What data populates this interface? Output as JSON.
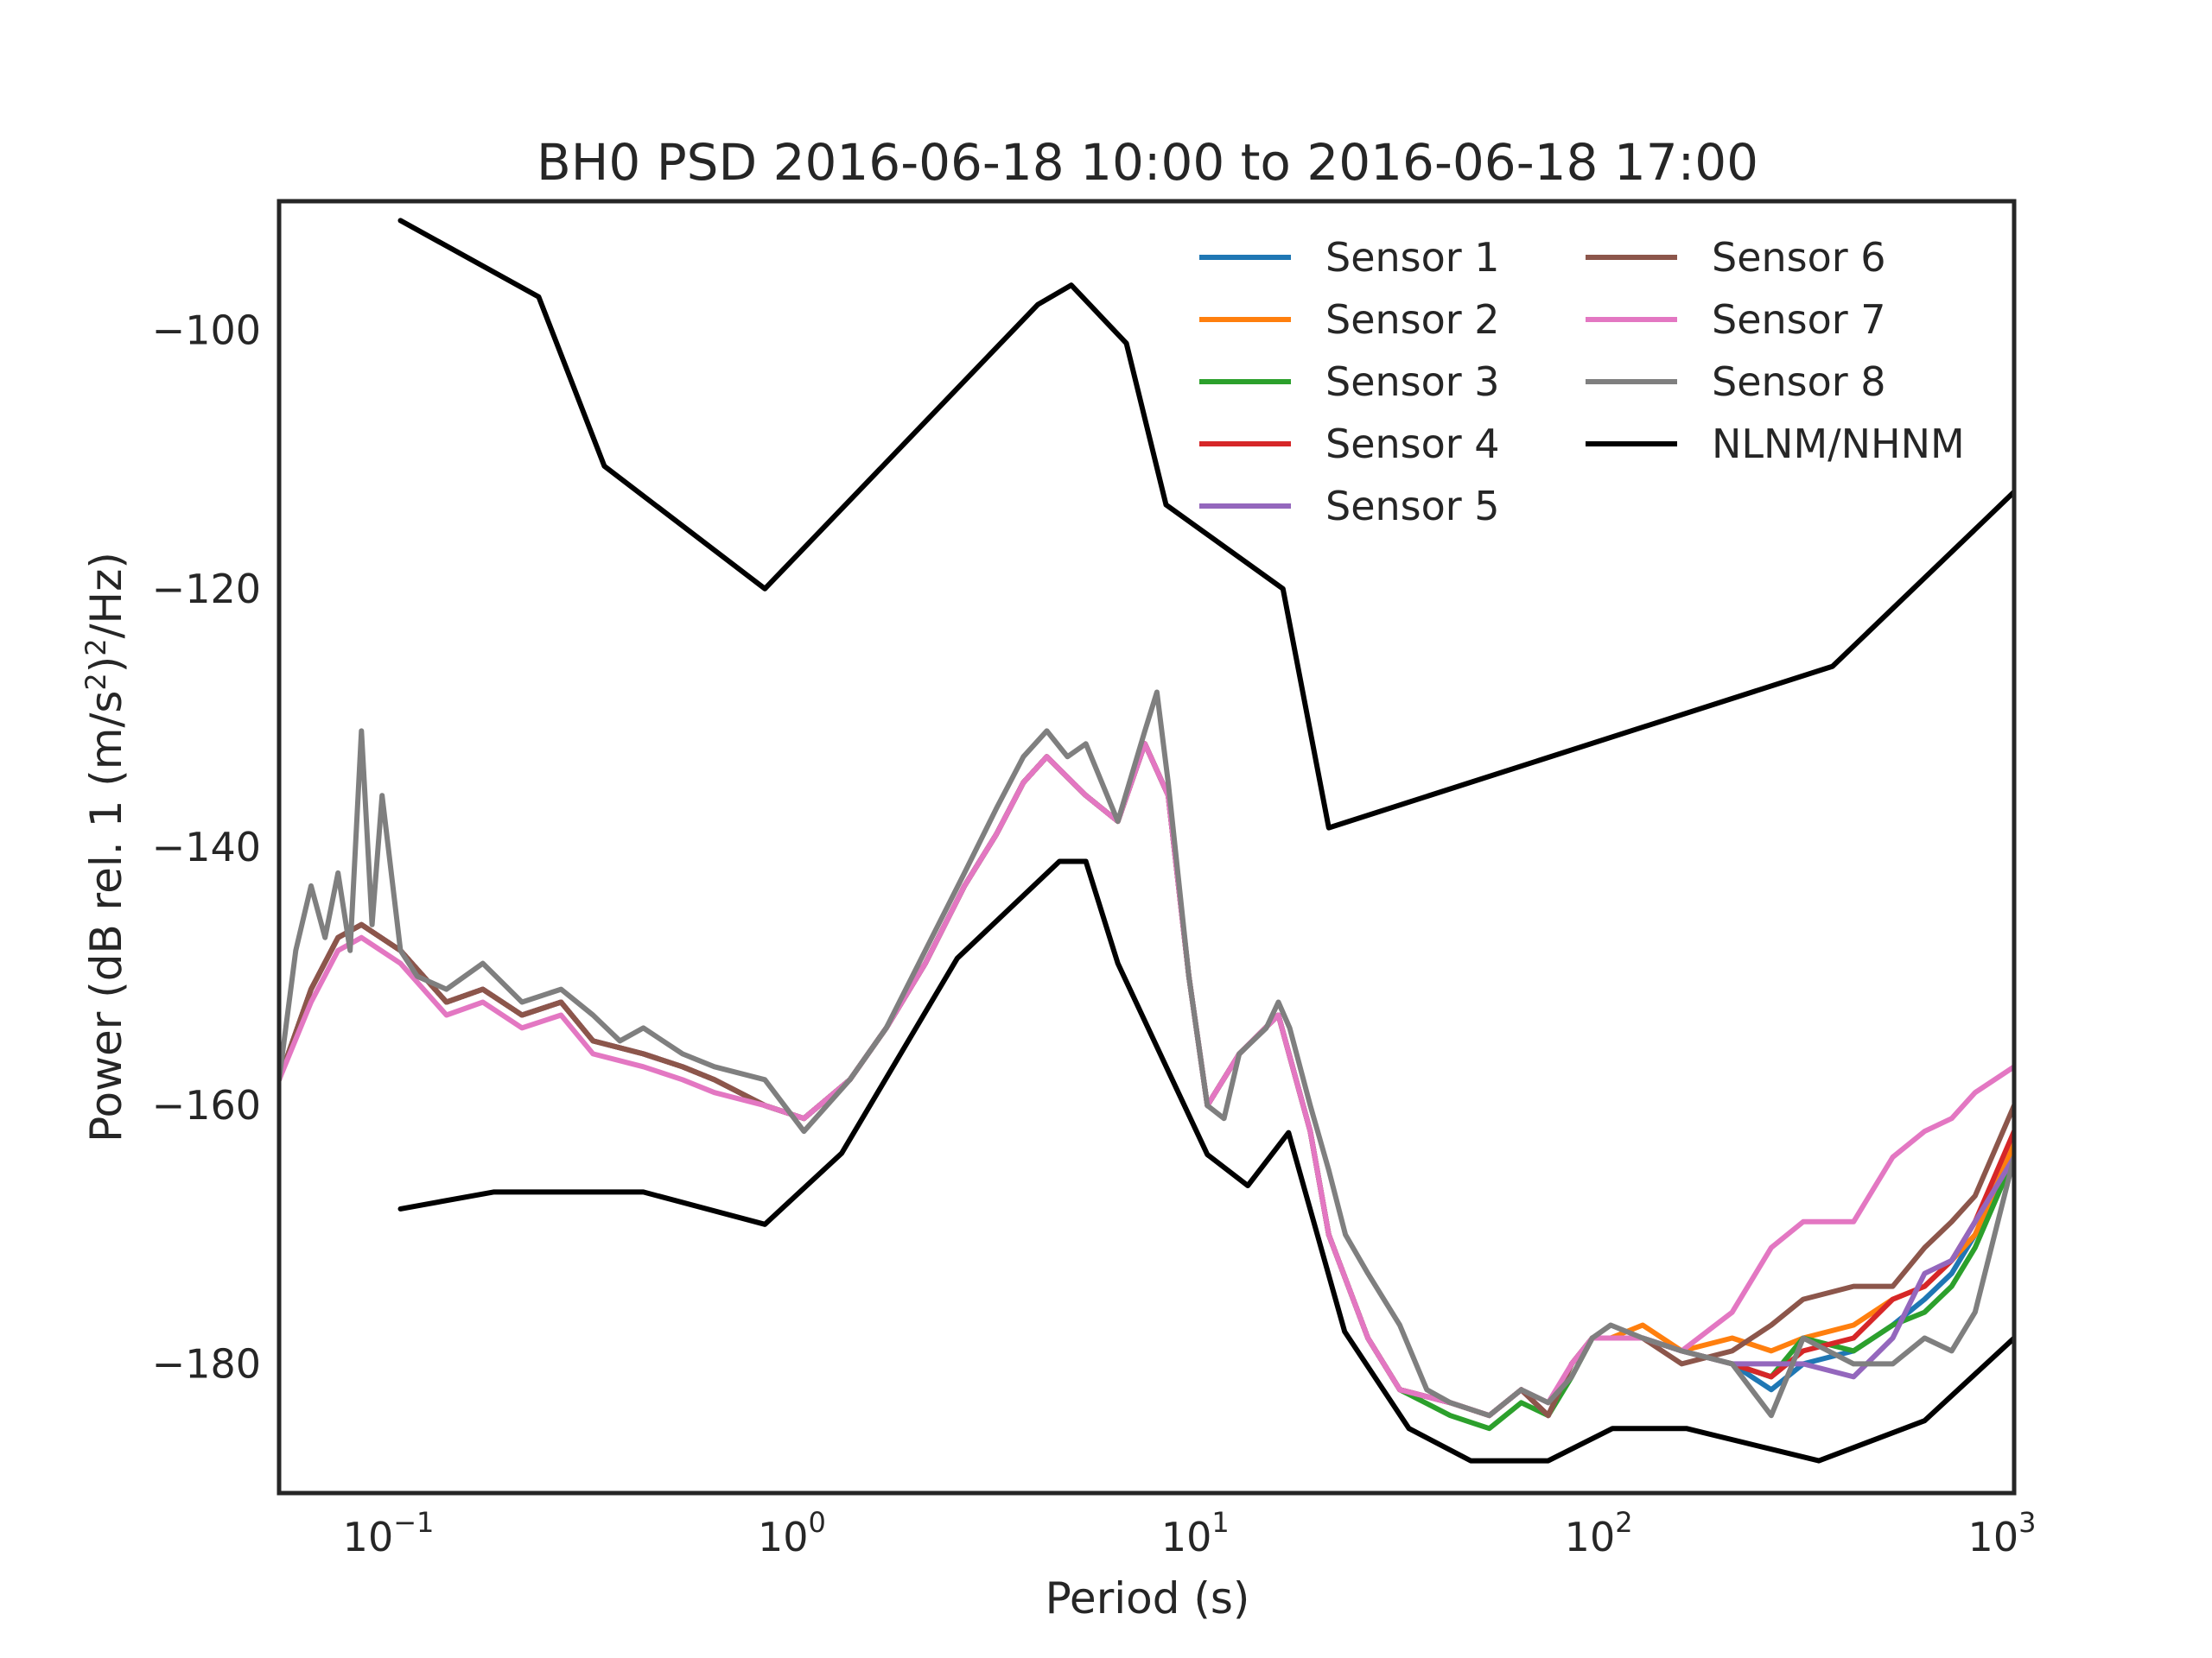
{
  "chart_data": {
    "type": "line",
    "title": "BH0 PSD 2016-06-18 10:00 to 2016-06-18 17:00",
    "xlabel": "Period (s)",
    "ylabel": "Power (dB rel. 1 (m/s²)²/Hz)",
    "ylabel_parts": {
      "a": "Power (dB rel. 1 (m/s",
      "sup1": "2",
      "b": ")",
      "sup2": "2",
      "c": "/Hz)"
    },
    "xscale": "log",
    "xlim": [
      0.05,
      1000
    ],
    "ylim": [
      -190,
      -90
    ],
    "grid": false,
    "legend_placement": "top-right",
    "x_ticks": [
      {
        "value": 0.1,
        "base": "10",
        "exp": "−1"
      },
      {
        "value": 1,
        "base": "10",
        "exp": "0"
      },
      {
        "value": 10,
        "base": "10",
        "exp": "1"
      },
      {
        "value": 100,
        "base": "10",
        "exp": "2"
      },
      {
        "value": 1000,
        "base": "10",
        "exp": "3"
      }
    ],
    "y_ticks": [
      {
        "value": -100,
        "label": "−100"
      },
      {
        "value": -120,
        "label": "−120"
      },
      {
        "value": -140,
        "label": "−140"
      },
      {
        "value": -160,
        "label": "−160"
      },
      {
        "value": -180,
        "label": "−180"
      }
    ],
    "series": [
      {
        "name": "Sensor 1",
        "color": "#1f77b4",
        "x": [
          0.05,
          0.06,
          0.07,
          0.08,
          0.1,
          0.13,
          0.16,
          0.2,
          0.25,
          0.3,
          0.4,
          0.5,
          0.6,
          0.8,
          1.0,
          1.3,
          1.6,
          2,
          2.5,
          3,
          3.5,
          4,
          5,
          6,
          7,
          8,
          9,
          10,
          12,
          15,
          18,
          20,
          25,
          30,
          40,
          50,
          60,
          70,
          80,
          90,
          100,
          120,
          150,
          200,
          250,
          300,
          400,
          500,
          600,
          700,
          800,
          1000
        ],
        "y": [
          -158,
          -151,
          -147,
          -146,
          -148,
          -152,
          -151,
          -153,
          -152,
          -155,
          -156,
          -157,
          -158,
          -160,
          -161,
          -158,
          -154,
          -149,
          -143,
          -139,
          -135,
          -133,
          -136,
          -138,
          -132,
          -136,
          -150,
          -160,
          -156,
          -153,
          -162,
          -170,
          -178,
          -182,
          -183,
          -184,
          -182,
          -184,
          -180,
          -178,
          -178,
          -178,
          -179,
          -180,
          -182,
          -180,
          -179,
          -177,
          -175,
          -173,
          -170,
          -164
        ]
      },
      {
        "name": "Sensor 2",
        "color": "#ff7f0e",
        "x": [
          0.05,
          0.06,
          0.07,
          0.08,
          0.1,
          0.13,
          0.16,
          0.2,
          0.25,
          0.3,
          0.4,
          0.5,
          0.6,
          0.8,
          1.0,
          1.3,
          1.6,
          2,
          2.5,
          3,
          3.5,
          4,
          5,
          6,
          7,
          8,
          9,
          10,
          12,
          15,
          18,
          20,
          25,
          30,
          40,
          50,
          60,
          70,
          80,
          90,
          100,
          120,
          150,
          200,
          250,
          300,
          400,
          500,
          600,
          700,
          800,
          1000
        ],
        "y": [
          -158,
          -151,
          -147,
          -146,
          -148,
          -152,
          -151,
          -153,
          -152,
          -155,
          -156,
          -157,
          -158,
          -160,
          -161,
          -158,
          -154,
          -149,
          -143,
          -139,
          -135,
          -133,
          -136,
          -138,
          -132,
          -136,
          -150,
          -160,
          -156,
          -153,
          -162,
          -170,
          -178,
          -182,
          -183,
          -184,
          -182,
          -184,
          -180,
          -178,
          -178,
          -177,
          -179,
          -178,
          -179,
          -178,
          -177,
          -175,
          -174,
          -172,
          -170,
          -163
        ]
      },
      {
        "name": "Sensor 3",
        "color": "#2ca02c",
        "x": [
          0.05,
          0.06,
          0.07,
          0.08,
          0.1,
          0.13,
          0.16,
          0.2,
          0.25,
          0.3,
          0.4,
          0.5,
          0.6,
          0.8,
          1.0,
          1.3,
          1.6,
          2,
          2.5,
          3,
          3.5,
          4,
          5,
          6,
          7,
          8,
          9,
          10,
          12,
          15,
          18,
          20,
          25,
          30,
          40,
          50,
          60,
          70,
          80,
          90,
          100,
          120,
          150,
          200,
          250,
          300,
          400,
          500,
          600,
          700,
          800,
          1000
        ],
        "y": [
          -158,
          -151,
          -147,
          -146,
          -148,
          -152,
          -151,
          -153,
          -152,
          -155,
          -156,
          -157,
          -158,
          -160,
          -161,
          -158,
          -154,
          -149,
          -143,
          -139,
          -135,
          -133,
          -136,
          -138,
          -132,
          -136,
          -150,
          -160,
          -156,
          -153,
          -162,
          -170,
          -178,
          -182,
          -184,
          -185,
          -183,
          -184,
          -181,
          -178,
          -178,
          -178,
          -179,
          -180,
          -181,
          -178,
          -179,
          -177,
          -176,
          -174,
          -171,
          -164
        ]
      },
      {
        "name": "Sensor 4",
        "color": "#d62728",
        "x": [
          0.05,
          0.06,
          0.07,
          0.08,
          0.1,
          0.13,
          0.16,
          0.2,
          0.25,
          0.3,
          0.4,
          0.5,
          0.6,
          0.8,
          1.0,
          1.3,
          1.6,
          2,
          2.5,
          3,
          3.5,
          4,
          5,
          6,
          7,
          8,
          9,
          10,
          12,
          15,
          18,
          20,
          25,
          30,
          40,
          50,
          60,
          70,
          80,
          90,
          100,
          120,
          150,
          200,
          250,
          300,
          400,
          500,
          600,
          700,
          800,
          1000
        ],
        "y": [
          -158,
          -151,
          -147,
          -146,
          -148,
          -152,
          -151,
          -153,
          -152,
          -155,
          -156,
          -157,
          -158,
          -160,
          -161,
          -158,
          -154,
          -149,
          -143,
          -139,
          -135,
          -133,
          -136,
          -138,
          -132,
          -136,
          -150,
          -160,
          -156,
          -153,
          -162,
          -170,
          -178,
          -182,
          -183,
          -184,
          -182,
          -184,
          -180,
          -178,
          -178,
          -178,
          -179,
          -180,
          -181,
          -179,
          -178,
          -175,
          -174,
          -172,
          -169,
          -162
        ]
      },
      {
        "name": "Sensor 5",
        "color": "#9467bd",
        "x": [
          0.05,
          0.06,
          0.07,
          0.08,
          0.1,
          0.13,
          0.16,
          0.2,
          0.25,
          0.3,
          0.4,
          0.5,
          0.6,
          0.8,
          1.0,
          1.3,
          1.6,
          2,
          2.5,
          3,
          3.5,
          4,
          5,
          6,
          7,
          8,
          9,
          10,
          12,
          15,
          18,
          20,
          25,
          30,
          40,
          50,
          60,
          70,
          80,
          90,
          100,
          120,
          150,
          200,
          250,
          300,
          400,
          500,
          600,
          700,
          800,
          1000
        ],
        "y": [
          -158,
          -151,
          -147,
          -146,
          -148,
          -152,
          -151,
          -153,
          -152,
          -155,
          -156,
          -157,
          -158,
          -160,
          -161,
          -158,
          -154,
          -149,
          -143,
          -139,
          -135,
          -133,
          -136,
          -138,
          -132,
          -136,
          -150,
          -160,
          -156,
          -153,
          -162,
          -170,
          -178,
          -182,
          -183,
          -184,
          -182,
          -184,
          -180,
          -178,
          -178,
          -178,
          -179,
          -180,
          -180,
          -180,
          -181,
          -178,
          -173,
          -172,
          -169,
          -164
        ]
      },
      {
        "name": "Sensor 6",
        "color": "#8c564b",
        "x": [
          0.05,
          0.06,
          0.07,
          0.08,
          0.1,
          0.13,
          0.16,
          0.2,
          0.25,
          0.3,
          0.4,
          0.5,
          0.6,
          0.8,
          1.0,
          1.3,
          1.6,
          2,
          2.5,
          3,
          3.5,
          4,
          5,
          6,
          7,
          8,
          9,
          10,
          12,
          15,
          18,
          20,
          25,
          30,
          40,
          50,
          60,
          70,
          80,
          90,
          100,
          120,
          150,
          200,
          250,
          300,
          400,
          500,
          600,
          700,
          800,
          1000
        ],
        "y": [
          -158,
          -151,
          -147,
          -146,
          -148,
          -152,
          -151,
          -153,
          -152,
          -155,
          -156,
          -157,
          -158,
          -160,
          -161,
          -158,
          -154,
          -149,
          -143,
          -139,
          -135,
          -133,
          -136,
          -138,
          -132,
          -136,
          -150,
          -160,
          -156,
          -153,
          -162,
          -170,
          -178,
          -182,
          -183,
          -184,
          -182,
          -184,
          -180,
          -178,
          -178,
          -178,
          -180,
          -179,
          -177,
          -175,
          -174,
          -174,
          -171,
          -169,
          -167,
          -160
        ]
      },
      {
        "name": "Sensor 7",
        "color": "#e377c2",
        "x": [
          0.05,
          0.06,
          0.07,
          0.08,
          0.1,
          0.13,
          0.16,
          0.2,
          0.25,
          0.3,
          0.4,
          0.5,
          0.6,
          0.8,
          1.0,
          1.3,
          1.6,
          2,
          2.5,
          3,
          3.5,
          4,
          5,
          6,
          7,
          8,
          9,
          10,
          12,
          15,
          18,
          20,
          25,
          30,
          40,
          50,
          60,
          70,
          80,
          90,
          100,
          120,
          150,
          200,
          250,
          300,
          400,
          500,
          600,
          700,
          800,
          1000
        ],
        "y": [
          -158,
          -152,
          -148,
          -147,
          -149,
          -153,
          -152,
          -154,
          -153,
          -156,
          -157,
          -158,
          -159,
          -160,
          -161,
          -158,
          -154,
          -149,
          -143,
          -139,
          -135,
          -133,
          -136,
          -138,
          -132,
          -136,
          -150,
          -160,
          -156,
          -153,
          -162,
          -170,
          -178,
          -182,
          -183,
          -184,
          -182,
          -183,
          -180,
          -178,
          -178,
          -178,
          -179,
          -176,
          -171,
          -169,
          -169,
          -164,
          -162,
          -161,
          -159,
          -157
        ]
      },
      {
        "name": "Sensor 8",
        "color": "#7f7f7f",
        "x": [
          0.05,
          0.055,
          0.06,
          0.065,
          0.07,
          0.075,
          0.08,
          0.085,
          0.09,
          0.1,
          0.11,
          0.13,
          0.16,
          0.2,
          0.25,
          0.3,
          0.35,
          0.4,
          0.5,
          0.6,
          0.8,
          1.0,
          1.3,
          1.6,
          2,
          2.5,
          3,
          3.5,
          4,
          4.5,
          5,
          6,
          7,
          7.5,
          8,
          9,
          10,
          11,
          12,
          14,
          15,
          16,
          18,
          20,
          22,
          25,
          30,
          35,
          40,
          50,
          60,
          70,
          80,
          90,
          100,
          120,
          150,
          200,
          250,
          300,
          400,
          500,
          600,
          700,
          800,
          1000
        ],
        "y": [
          -158,
          -148,
          -143,
          -147,
          -142,
          -148,
          -131,
          -146,
          -136,
          -148,
          -150,
          -151,
          -149,
          -152,
          -151,
          -153,
          -155,
          -154,
          -156,
          -157,
          -158,
          -162,
          -158,
          -154,
          -148,
          -142,
          -137,
          -133,
          -131,
          -133,
          -132,
          -138,
          -131,
          -128,
          -135,
          -150,
          -160,
          -161,
          -156,
          -154,
          -152,
          -154,
          -160,
          -165,
          -170,
          -173,
          -177,
          -182,
          -183,
          -184,
          -182,
          -183,
          -181,
          -178,
          -177,
          -178,
          -179,
          -180,
          -184,
          -178,
          -180,
          -180,
          -178,
          -179,
          -176,
          -164
        ]
      },
      {
        "name": "NLNM/NHNM",
        "color": "#000000",
        "x": [
          0.1,
          0.22,
          0.32,
          0.8,
          3.8,
          4.6,
          6.3,
          7.9,
          15.4,
          20,
          354.8,
          1000
        ],
        "y": [
          -91.5,
          -97.4,
          -110.5,
          -120,
          -98,
          -96.5,
          -101,
          -113.5,
          -120,
          -138.5,
          -126,
          -112.5
        ],
        "x2": [
          0.1,
          0.17,
          0.4,
          0.8,
          1.24,
          2.4,
          4.3,
          5,
          6,
          10,
          12.6,
          15.9,
          21.9,
          31.6,
          45,
          70,
          101,
          154,
          328,
          600,
          1000
        ],
        "y2": [
          -168,
          -166.7,
          -166.7,
          -169.2,
          -163.7,
          -148.6,
          -141.1,
          -141.1,
          -149,
          -163.8,
          -166.2,
          -162.1,
          -177.5,
          -185,
          -187.5,
          -187.5,
          -185,
          -185,
          -187.5,
          -184.4,
          -178
        ]
      }
    ]
  }
}
